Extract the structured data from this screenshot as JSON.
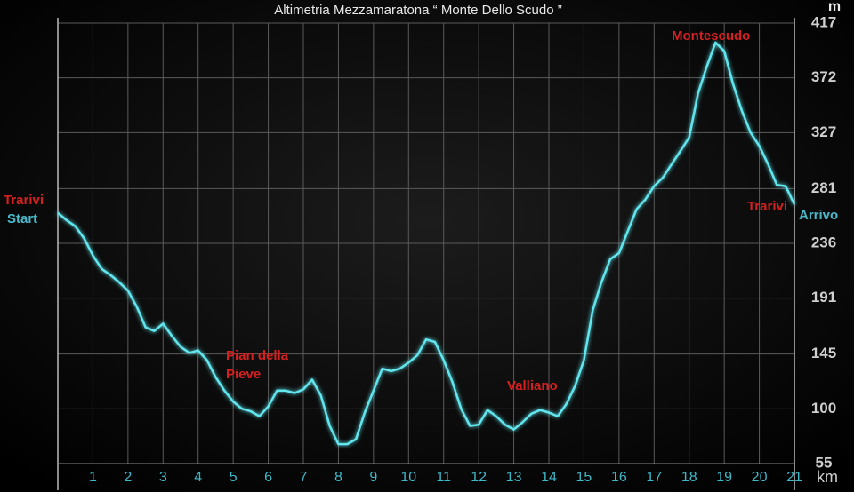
{
  "chart_data": {
    "type": "line",
    "title": "Altimetria  Mezzamaratona  “  Monte  Dello  Scudo  ”",
    "y_unit": "m",
    "x_unit": "km",
    "xlim": [
      0,
      21
    ],
    "xticks": [
      1,
      2,
      3,
      4,
      5,
      6,
      7,
      8,
      9,
      10,
      11,
      12,
      13,
      14,
      15,
      16,
      17,
      18,
      19,
      20,
      21
    ],
    "ylim": [
      55,
      417
    ],
    "yticks": [
      55,
      100,
      145,
      191,
      236,
      281,
      327,
      372,
      417
    ],
    "grid": true,
    "annotations": [
      "Trarivi",
      "Start",
      "Pian della",
      "Pieve",
      "Valliano",
      "Montescudo",
      "Trarivi",
      "Arrivo"
    ],
    "series": [
      {
        "name": "Altimetria",
        "color": "#62e6ee",
        "x": [
          0,
          0.25,
          0.5,
          0.75,
          1,
          1.25,
          1.5,
          1.75,
          2,
          2.25,
          2.5,
          2.75,
          3,
          3.25,
          3.5,
          3.75,
          4,
          4.25,
          4.5,
          4.75,
          5,
          5.25,
          5.5,
          5.75,
          6,
          6.25,
          6.5,
          6.75,
          7,
          7.25,
          7.5,
          7.75,
          8,
          8.25,
          8.5,
          8.75,
          9,
          9.25,
          9.5,
          9.75,
          10,
          10.25,
          10.5,
          10.75,
          11,
          11.25,
          11.5,
          11.75,
          12,
          12.25,
          12.5,
          12.75,
          13,
          13.25,
          13.5,
          13.75,
          14,
          14.25,
          14.5,
          14.75,
          15,
          15.25,
          15.5,
          15.75,
          16,
          16.25,
          16.5,
          16.75,
          17,
          17.25,
          17.5,
          17.75,
          18,
          18.25,
          18.5,
          18.75,
          19,
          19.25,
          19.5,
          19.75,
          20,
          20.25,
          20.5,
          20.75,
          21
        ],
        "values": [
          261,
          255,
          250,
          240,
          226,
          215,
          210,
          204,
          197,
          184,
          167,
          164,
          170,
          160,
          151,
          146,
          148,
          140,
          126,
          115,
          106,
          100,
          98,
          94,
          102,
          115,
          115,
          113,
          116,
          124,
          111,
          86,
          71,
          71,
          75,
          97,
          115,
          133,
          131,
          133,
          138,
          144,
          157,
          155,
          140,
          122,
          100,
          86,
          87,
          99,
          94,
          87,
          83,
          89,
          96,
          99,
          97,
          94,
          104,
          119,
          140,
          181,
          204,
          223,
          228,
          246,
          264,
          272,
          283,
          290,
          301,
          312,
          323,
          359,
          381,
          401,
          394,
          367,
          345,
          327,
          316,
          301,
          284,
          283,
          268
        ]
      }
    ]
  }
}
